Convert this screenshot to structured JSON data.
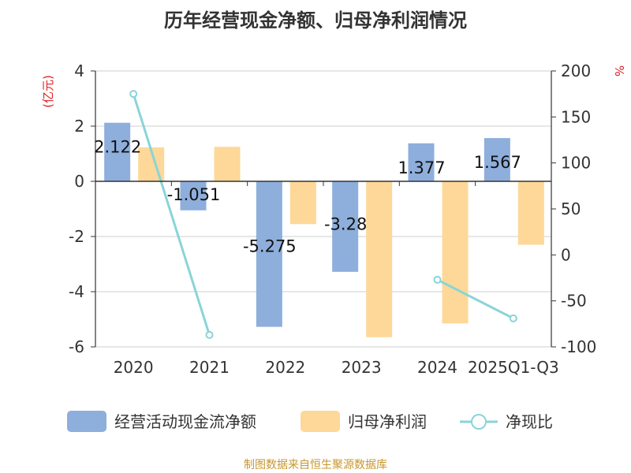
{
  "chart_data": {
    "type": "bar",
    "title": "历年经营现金净额、归母净利润情况",
    "left_axis_unit": "(亿元)",
    "right_axis_unit": "%",
    "categories": [
      "2020",
      "2021",
      "2022",
      "2023",
      "2024",
      "2025Q1-Q3"
    ],
    "left_ylim": [
      -6,
      4
    ],
    "left_ticks": [
      "4",
      "2",
      "0",
      "-2",
      "-4",
      "-6"
    ],
    "right_ylim": [
      -100,
      200
    ],
    "right_ticks": [
      "200",
      "150",
      "100",
      "50",
      "0",
      "-50",
      "-100"
    ],
    "grid": true,
    "legend_position": "bottom",
    "series": [
      {
        "name": "经营活动现金流净额",
        "type": "bar",
        "axis": "left",
        "color": "#8eaedc",
        "values": [
          2.122,
          -1.051,
          -5.275,
          -3.28,
          1.377,
          1.567
        ],
        "labels": [
          "2.122",
          "-1.051",
          "-5.275",
          "-3.28",
          "1.377",
          "1.567"
        ]
      },
      {
        "name": "归母净利润",
        "type": "bar",
        "axis": "left",
        "color": "#fdd898",
        "values": [
          1.23,
          1.25,
          -1.55,
          -5.65,
          -5.15,
          -2.3
        ]
      },
      {
        "name": "净现比",
        "type": "line",
        "axis": "right",
        "color": "#8ad4d8",
        "values": [
          175,
          -87,
          null,
          null,
          -27,
          -69
        ]
      }
    ],
    "source": "制图数据来自恒生聚源数据库"
  }
}
